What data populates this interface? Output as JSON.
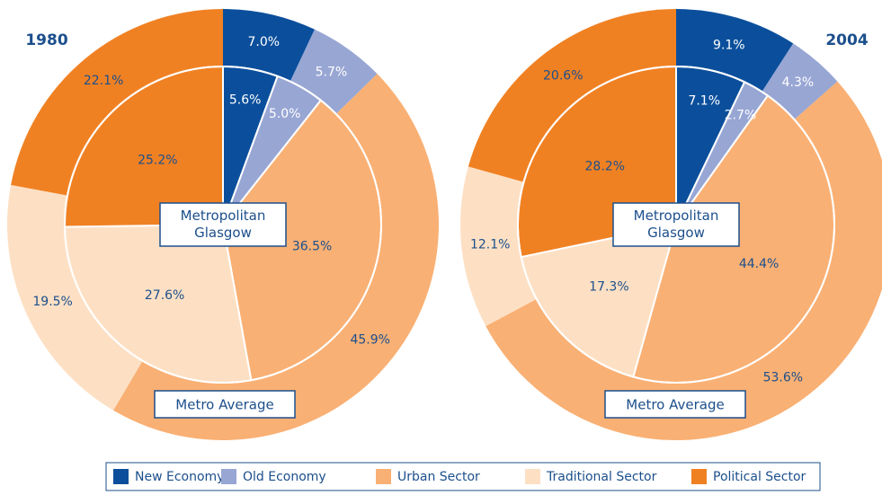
{
  "legend": {
    "categories": [
      "New Economy",
      "Old Economy",
      "Urban Sector",
      "Traditional Sector",
      "Political Sector"
    ],
    "colors": [
      "#0b4f9c",
      "#98a6d4",
      "#f9b074",
      "#fde0c4",
      "#f08123"
    ]
  },
  "chart_data": [
    {
      "type": "pie",
      "title": "1980",
      "series": [
        {
          "name": "Metro Average",
          "values": [
            7.0,
            5.7,
            45.9,
            19.5,
            22.1
          ],
          "value_labels": [
            "7.0%",
            "5.7%",
            "45.9%",
            "19.5%",
            "22.1%"
          ]
        },
        {
          "name": "Metropolitan Glasgow",
          "values": [
            5.6,
            5.0,
            36.5,
            27.6,
            25.2
          ],
          "value_labels": [
            "5.6%",
            "5.0%",
            "36.5%",
            "27.6%",
            "25.2%"
          ]
        }
      ]
    },
    {
      "type": "pie",
      "title": "2004",
      "series": [
        {
          "name": "Metro Average",
          "values": [
            9.1,
            4.3,
            53.6,
            12.1,
            20.6
          ],
          "value_labels": [
            "9.1%",
            "4.3%",
            "53.6%",
            "12.1%",
            "20.6%"
          ]
        },
        {
          "name": "Metropolitan Glasgow",
          "values": [
            7.1,
            2.7,
            44.4,
            17.3,
            28.2
          ],
          "value_labels": [
            "7.1%",
            "2.7%",
            "44.4%",
            "17.3%",
            "28.2%"
          ]
        }
      ]
    }
  ]
}
